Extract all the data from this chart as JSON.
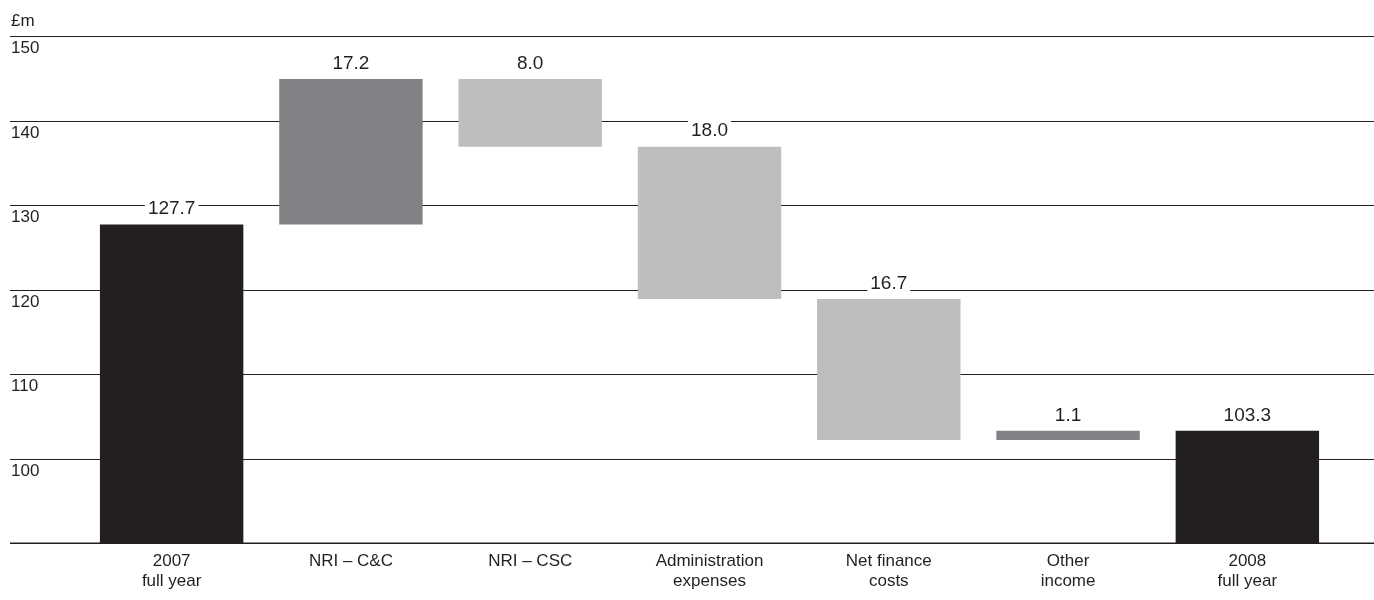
{
  "chart_data": {
    "type": "bar",
    "ylabel": "£m",
    "categories": [
      "2007\nfull year",
      "NRI – C&C",
      "NRI – CSC",
      "Administration\nexpenses",
      "Net finance\ncosts",
      "Other\nincome",
      "2008\nfull year"
    ],
    "values": [
      127.7,
      17.2,
      -8.0,
      -18.0,
      -16.7,
      1.1,
      103.3
    ],
    "base": [
      null,
      127.7,
      144.9,
      136.9,
      118.9,
      102.2,
      null
    ],
    "colors": [
      "#231f20",
      "#808285",
      "#bcbec0",
      "#bcbec0",
      "#bcbec0",
      "#808285",
      "#231f20"
    ],
    "value_labels": [
      "127.7",
      "17.2",
      "8.0",
      "18.0",
      "16.7",
      "1.1",
      "103.3"
    ],
    "ylim": [
      90,
      150
    ],
    "yticks": [
      100,
      110,
      120,
      130,
      140,
      150
    ],
    "grid": "y"
  }
}
